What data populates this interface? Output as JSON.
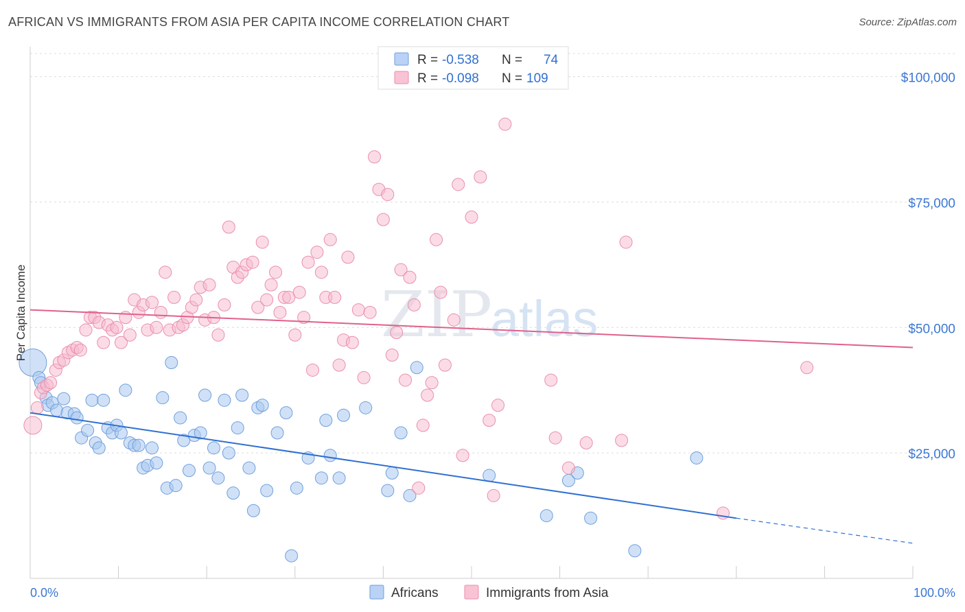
{
  "chart_data": {
    "type": "scatter",
    "title": "AFRICAN VS IMMIGRANTS FROM ASIA PER CAPITA INCOME CORRELATION CHART",
    "source": "Source: ZipAtlas.com",
    "xlabel": "",
    "ylabel": "Per Capita Income",
    "xlim": [
      0,
      100
    ],
    "ylim": [
      0,
      105000
    ],
    "x_tick_labels": [
      "0.0%",
      "100.0%"
    ],
    "y_ticks": [
      25000,
      50000,
      75000,
      100000
    ],
    "y_tick_labels": [
      "$25,000",
      "$50,000",
      "$75,000",
      "$100,000"
    ],
    "grid": true,
    "legend_position": "bottom",
    "watermark": "ZIPatlas",
    "stats": [
      {
        "r_label": "R =",
        "r_value": "-0.538",
        "n_label": "N =",
        "n_value": "74"
      },
      {
        "r_label": "R =",
        "r_value": "-0.098",
        "n_label": "N =",
        "n_value": "109"
      }
    ],
    "series": [
      {
        "name": "Africans",
        "color": "#8ab4e8",
        "line_color": "#2f6fd0",
        "trend": {
          "x0": 0,
          "y0": 33000,
          "x1": 80,
          "y1": 12000,
          "dash_to_x": 100,
          "dash_to_y": 7000
        },
        "points": [
          [
            0.3,
            43000
          ],
          [
            1,
            40000
          ],
          [
            1.2,
            39000
          ],
          [
            1.8,
            36000
          ],
          [
            2,
            34500
          ],
          [
            2.5,
            35000
          ],
          [
            3,
            33500
          ],
          [
            3.8,
            35800
          ],
          [
            4.2,
            33000
          ],
          [
            5,
            32800
          ],
          [
            5.3,
            32000
          ],
          [
            5.8,
            28000
          ],
          [
            6.5,
            29500
          ],
          [
            7,
            35500
          ],
          [
            7.4,
            27000
          ],
          [
            7.8,
            26000
          ],
          [
            8.3,
            35500
          ],
          [
            8.8,
            30000
          ],
          [
            9.3,
            29000
          ],
          [
            9.8,
            30500
          ],
          [
            10.3,
            29000
          ],
          [
            10.8,
            37500
          ],
          [
            11.3,
            27000
          ],
          [
            11.8,
            26500
          ],
          [
            12.3,
            26500
          ],
          [
            12.8,
            22000
          ],
          [
            13.3,
            22500
          ],
          [
            13.8,
            26000
          ],
          [
            14.3,
            23000
          ],
          [
            15,
            36000
          ],
          [
            15.5,
            18000
          ],
          [
            16,
            43000
          ],
          [
            16.5,
            18500
          ],
          [
            17,
            32000
          ],
          [
            17.4,
            27500
          ],
          [
            18,
            21500
          ],
          [
            18.6,
            28500
          ],
          [
            19.3,
            29000
          ],
          [
            19.8,
            36500
          ],
          [
            20.3,
            22000
          ],
          [
            20.8,
            26000
          ],
          [
            21.3,
            20000
          ],
          [
            22,
            35500
          ],
          [
            22.5,
            25000
          ],
          [
            23,
            17000
          ],
          [
            23.5,
            30000
          ],
          [
            24,
            36500
          ],
          [
            24.8,
            22000
          ],
          [
            25.3,
            13500
          ],
          [
            25.8,
            34000
          ],
          [
            26.3,
            34500
          ],
          [
            26.8,
            17500
          ],
          [
            28,
            29000
          ],
          [
            29,
            33000
          ],
          [
            29.6,
            4500
          ],
          [
            30.2,
            18000
          ],
          [
            31.5,
            24000
          ],
          [
            33,
            20000
          ],
          [
            33.5,
            31500
          ],
          [
            34,
            24500
          ],
          [
            35,
            20000
          ],
          [
            35.5,
            32500
          ],
          [
            38,
            34000
          ],
          [
            41,
            21000
          ],
          [
            40.5,
            17500
          ],
          [
            42,
            29000
          ],
          [
            43,
            16500
          ],
          [
            43.8,
            42000
          ],
          [
            52,
            20500
          ],
          [
            58.5,
            12500
          ],
          [
            61,
            19500
          ],
          [
            62,
            21000
          ],
          [
            63.5,
            12000
          ],
          [
            68.5,
            5500
          ],
          [
            75.5,
            24000
          ]
        ]
      },
      {
        "name": "Immigrants from Asia",
        "color": "#f4a7c0",
        "line_color": "#e0608a",
        "trend": {
          "x0": 0,
          "y0": 53500,
          "x1": 100,
          "y1": 46000
        },
        "points": [
          [
            0.3,
            30500
          ],
          [
            0.8,
            34000
          ],
          [
            1.2,
            37000
          ],
          [
            1.5,
            38000
          ],
          [
            1.9,
            38500
          ],
          [
            2.3,
            39000
          ],
          [
            2.9,
            41500
          ],
          [
            3.3,
            43000
          ],
          [
            3.8,
            43500
          ],
          [
            4.3,
            45000
          ],
          [
            4.8,
            45500
          ],
          [
            5.3,
            46000
          ],
          [
            5.7,
            45500
          ],
          [
            6.3,
            49500
          ],
          [
            6.8,
            52000
          ],
          [
            7.3,
            52000
          ],
          [
            7.8,
            51000
          ],
          [
            8.3,
            47000
          ],
          [
            8.8,
            50500
          ],
          [
            9.3,
            49500
          ],
          [
            9.8,
            50000
          ],
          [
            10.3,
            47000
          ],
          [
            10.8,
            52000
          ],
          [
            11.3,
            48500
          ],
          [
            11.8,
            55500
          ],
          [
            12.3,
            53000
          ],
          [
            12.8,
            54500
          ],
          [
            13.3,
            49500
          ],
          [
            13.8,
            55000
          ],
          [
            14.3,
            50000
          ],
          [
            14.8,
            53000
          ],
          [
            15.3,
            61000
          ],
          [
            15.8,
            49500
          ],
          [
            16.3,
            56000
          ],
          [
            16.8,
            50000
          ],
          [
            17.3,
            50500
          ],
          [
            17.8,
            52000
          ],
          [
            18.3,
            54000
          ],
          [
            18.8,
            55500
          ],
          [
            19.3,
            58000
          ],
          [
            19.8,
            51500
          ],
          [
            20.3,
            58500
          ],
          [
            20.8,
            52000
          ],
          [
            21.3,
            48500
          ],
          [
            22,
            54500
          ],
          [
            22.5,
            70000
          ],
          [
            23,
            62000
          ],
          [
            23.5,
            60000
          ],
          [
            24,
            61000
          ],
          [
            24.5,
            62500
          ],
          [
            25.2,
            63000
          ],
          [
            25.8,
            54000
          ],
          [
            26.3,
            67000
          ],
          [
            26.8,
            55500
          ],
          [
            27.3,
            58500
          ],
          [
            27.8,
            61000
          ],
          [
            28.3,
            53000
          ],
          [
            28.8,
            56000
          ],
          [
            29.3,
            56000
          ],
          [
            30,
            48500
          ],
          [
            30.5,
            57000
          ],
          [
            31,
            52000
          ],
          [
            31.5,
            63000
          ],
          [
            32,
            41500
          ],
          [
            32.5,
            65000
          ],
          [
            33,
            61000
          ],
          [
            33.5,
            56000
          ],
          [
            34,
            67500
          ],
          [
            34.5,
            56000
          ],
          [
            35,
            42500
          ],
          [
            35.5,
            47500
          ],
          [
            36,
            64000
          ],
          [
            36.5,
            47000
          ],
          [
            37.2,
            53500
          ],
          [
            37.8,
            40000
          ],
          [
            38.5,
            53000
          ],
          [
            39,
            84000
          ],
          [
            39.5,
            77500
          ],
          [
            40,
            71500
          ],
          [
            40.5,
            76500
          ],
          [
            41,
            44500
          ],
          [
            41.5,
            49000
          ],
          [
            42,
            61500
          ],
          [
            42.5,
            39500
          ],
          [
            43,
            60000
          ],
          [
            43.5,
            54500
          ],
          [
            44,
            18000
          ],
          [
            44.5,
            30500
          ],
          [
            45,
            36500
          ],
          [
            45.5,
            39000
          ],
          [
            46,
            67500
          ],
          [
            46.5,
            57000
          ],
          [
            47,
            42500
          ],
          [
            48,
            51500
          ],
          [
            48.5,
            78500
          ],
          [
            49,
            24500
          ],
          [
            50,
            72000
          ],
          [
            51,
            80000
          ],
          [
            52,
            31500
          ],
          [
            52.5,
            16500
          ],
          [
            53,
            34500
          ],
          [
            53.8,
            90500
          ],
          [
            59,
            39500
          ],
          [
            59.5,
            28000
          ],
          [
            61,
            22000
          ],
          [
            63,
            27000
          ],
          [
            67,
            27500
          ],
          [
            67.5,
            67000
          ],
          [
            78.5,
            13000
          ],
          [
            88,
            42000
          ]
        ]
      }
    ]
  }
}
